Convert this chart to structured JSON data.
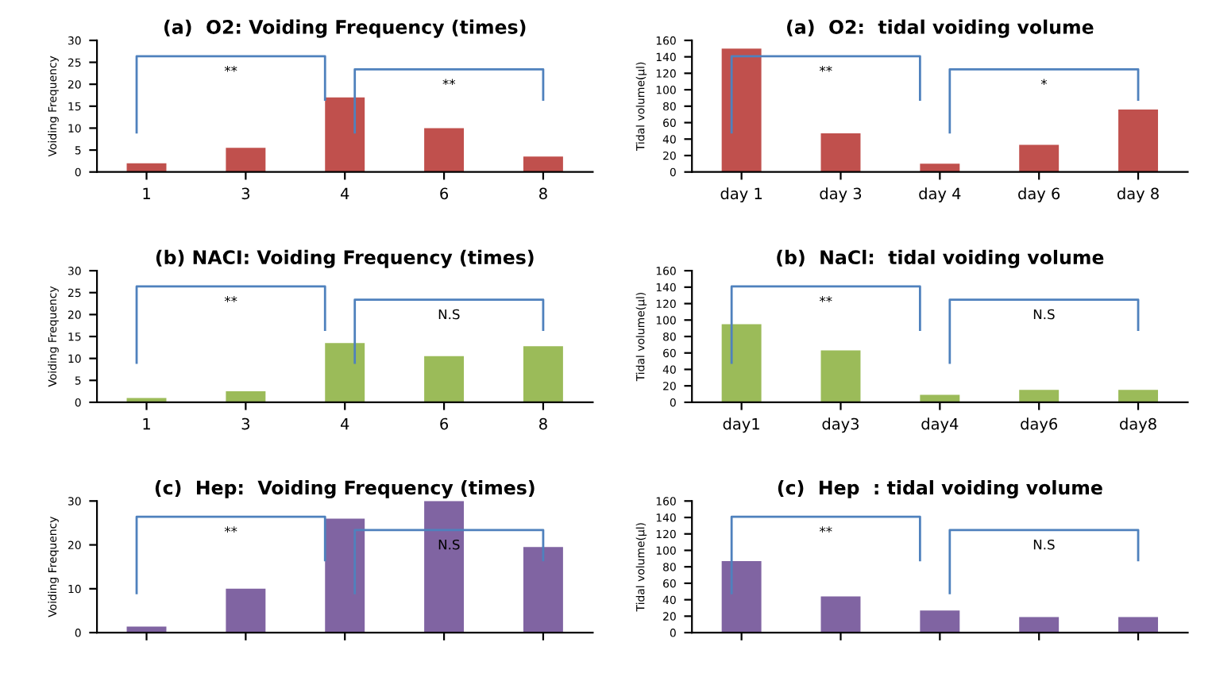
{
  "chart_data": [
    {
      "type": "bar",
      "title": "(a)  O2: Voiding Frequency (times)",
      "ylabel": "Voiding Frequency",
      "categories": [
        "1",
        "3",
        "4",
        "6",
        "8"
      ],
      "values": [
        2,
        5.5,
        17,
        10,
        3.5
      ],
      "color": "#c0504d",
      "ylim": [
        0,
        30
      ],
      "yticks": [
        0,
        5,
        10,
        15,
        20,
        25,
        30
      ],
      "grid": false,
      "annotations": [
        "**",
        "**"
      ]
    },
    {
      "type": "bar",
      "title": "(a)  O2:  tidal voiding volume",
      "ylabel": "Tidal volume(μl)",
      "categories": [
        "day 1",
        "day 3",
        "day 4",
        "day 6",
        "day 8"
      ],
      "values": [
        150,
        47,
        10,
        33,
        76
      ],
      "color": "#c0504d",
      "ylim": [
        0,
        160
      ],
      "yticks": [
        0,
        20,
        40,
        60,
        80,
        100,
        120,
        140,
        160
      ],
      "grid": false,
      "annotations": [
        "**",
        "*"
      ]
    },
    {
      "type": "bar",
      "title": "(b) NACI: Voiding Frequency (times)",
      "ylabel": "Voiding Frequency",
      "categories": [
        "1",
        "3",
        "4",
        "6",
        "8"
      ],
      "values": [
        1,
        2.5,
        13.5,
        10.5,
        12.8
      ],
      "color": "#9bbb59",
      "ylim": [
        0,
        30
      ],
      "yticks": [
        0,
        5,
        10,
        15,
        20,
        25,
        30
      ],
      "grid": false,
      "annotations": [
        "**",
        "N.S"
      ]
    },
    {
      "type": "bar",
      "title": "(b)  NaCl:  tidal voiding volume",
      "ylabel": "Tidal volume(μl)",
      "categories": [
        "day1",
        "day3",
        "day4",
        "day6",
        "day8"
      ],
      "values": [
        95,
        63,
        9,
        15,
        15
      ],
      "color": "#9bbb59",
      "ylim": [
        0,
        160
      ],
      "yticks": [
        0,
        20,
        40,
        60,
        80,
        100,
        120,
        140,
        160
      ],
      "grid": false,
      "annotations": [
        "**",
        "N.S"
      ]
    },
    {
      "type": "bar",
      "title": "(c)  Hep:  Voiding Frequency (times)",
      "ylabel": "Voiding Frequency",
      "categories": [
        null,
        null,
        null,
        null,
        null
      ],
      "values": [
        1.4,
        10,
        26,
        30,
        19.5
      ],
      "color": "#8064a2",
      "ylim": [
        0,
        30
      ],
      "yticks": [
        0,
        10,
        20,
        30
      ],
      "grid": false,
      "annotations": [
        "**",
        "N.S"
      ]
    },
    {
      "type": "bar",
      "title": "(c)  Hep  : tidal voiding volume",
      "ylabel": "Tidal volume(μl)",
      "categories": [
        null,
        null,
        null,
        null,
        null
      ],
      "values": [
        87,
        44,
        27,
        19,
        19
      ],
      "color": "#8064a2",
      "ylim": [
        0,
        160
      ],
      "yticks": [
        0,
        20,
        40,
        60,
        80,
        100,
        120,
        140,
        160
      ],
      "grid": false,
      "annotations": [
        "**",
        "N.S"
      ]
    }
  ]
}
